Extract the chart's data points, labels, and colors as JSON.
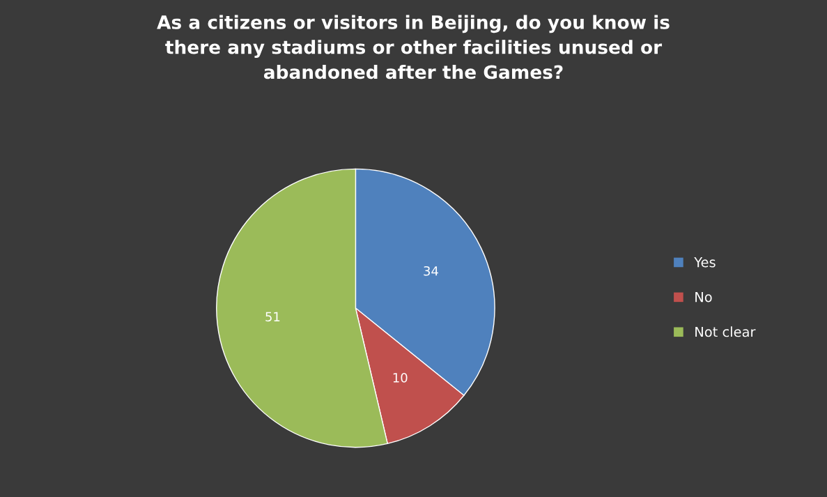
{
  "chart_data": {
    "type": "pie",
    "title": "As a citizens or visitors in Beijing, do you know is\nthere any stadiums or other facilities unused or\nabandoned after the Games?",
    "categories": [
      "Yes",
      "No",
      "Not clear"
    ],
    "values": [
      34,
      10,
      51
    ],
    "colors": [
      "#4f81bd",
      "#c0504d",
      "#9bbb59"
    ],
    "data_labels": true,
    "legend": "right"
  }
}
